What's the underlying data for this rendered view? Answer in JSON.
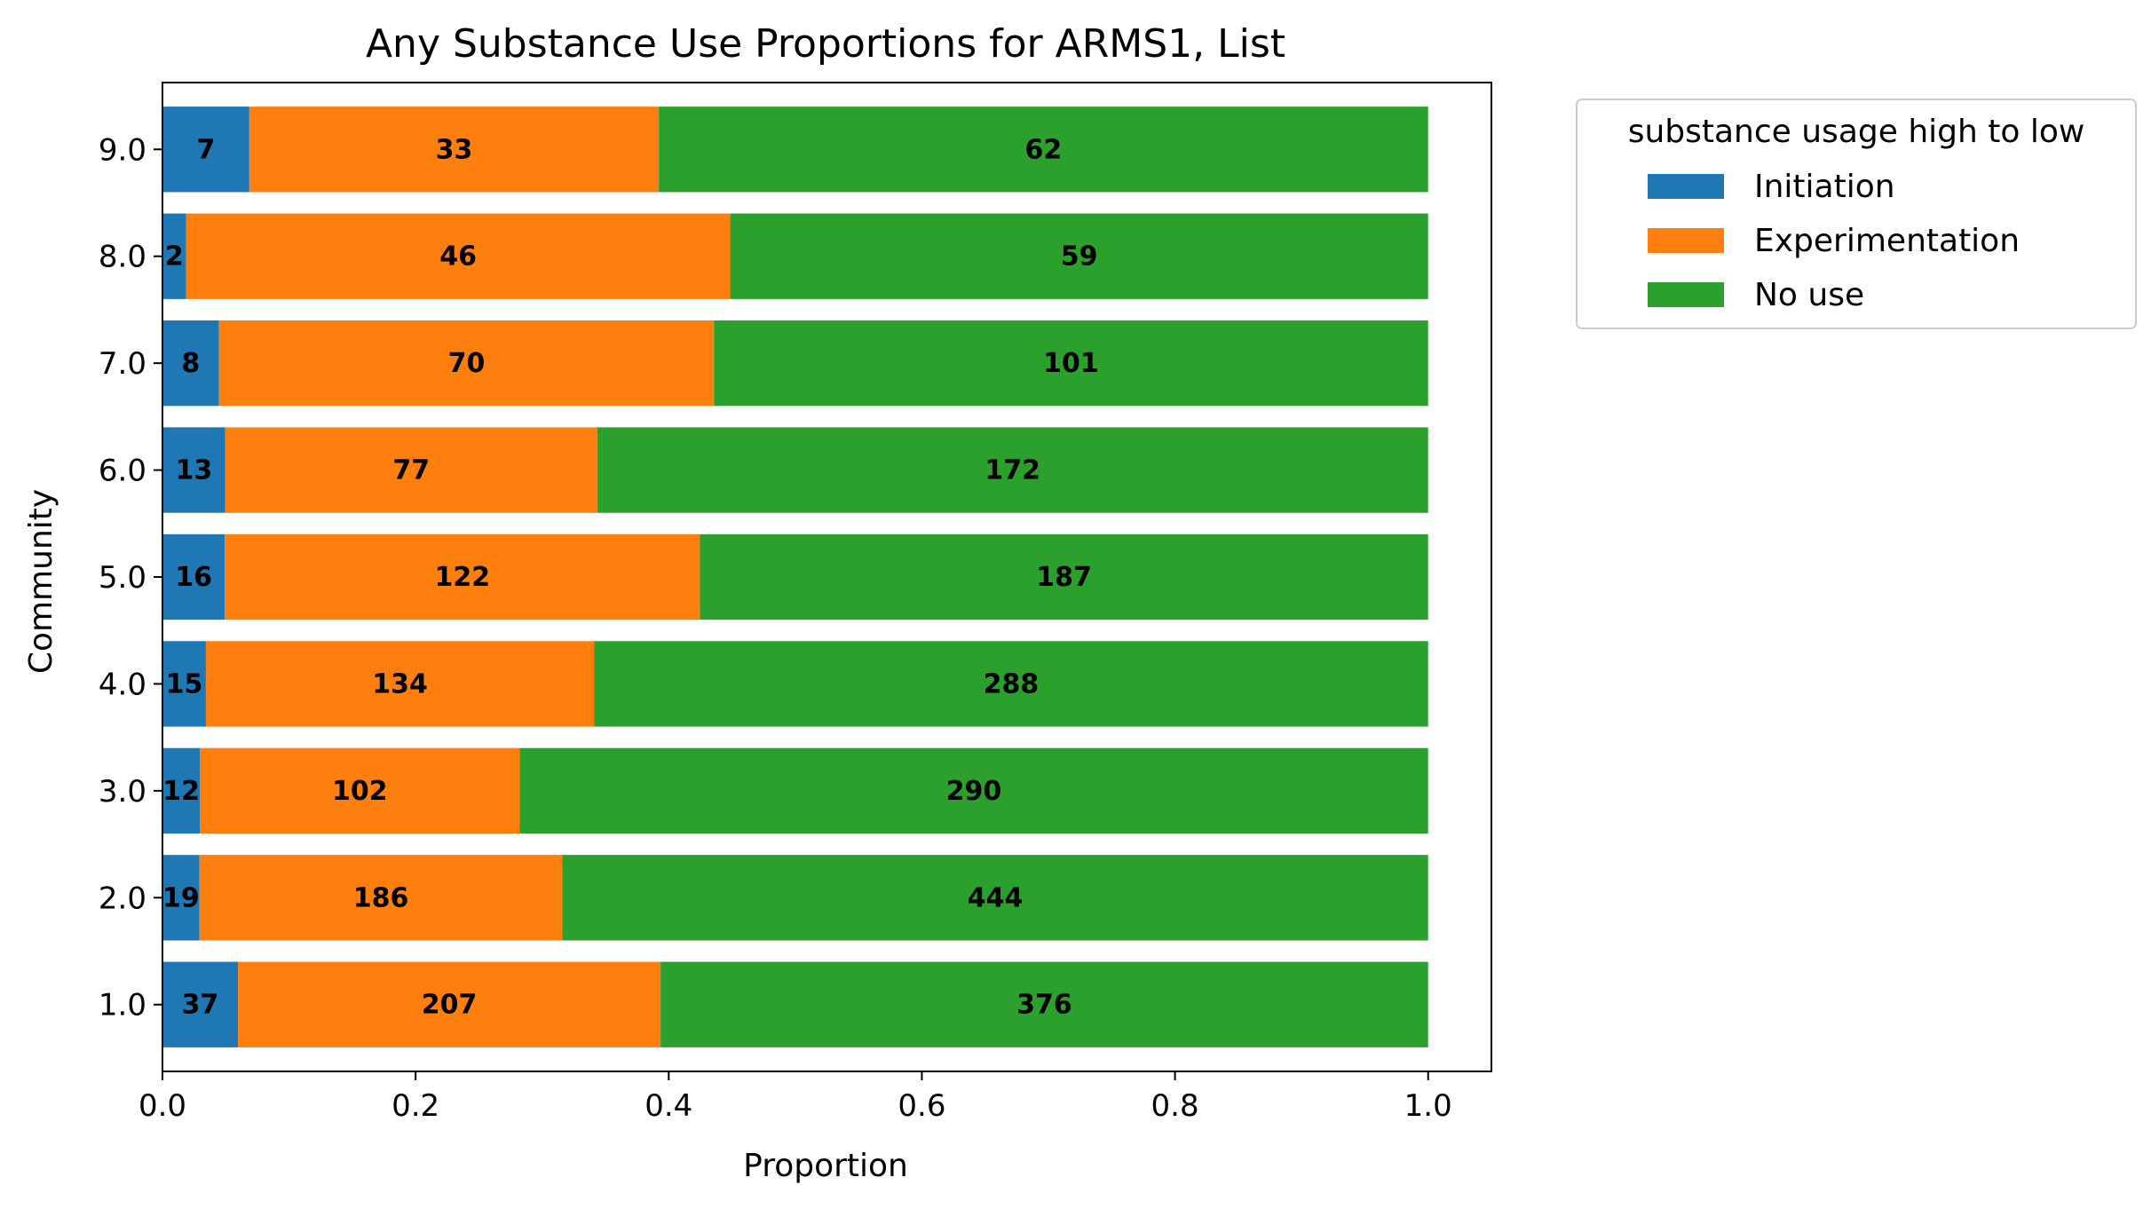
{
  "chart_data": {
    "type": "bar",
    "orientation": "horizontal",
    "stacked": true,
    "title": "Any Substance Use Proportions for ARMS1, List",
    "xlabel": "Proportion",
    "ylabel": "Community",
    "xlim": [
      0.0,
      1.05
    ],
    "xticks": [
      "0.0",
      "0.2",
      "0.4",
      "0.6",
      "0.8",
      "1.0"
    ],
    "categories": [
      "1.0",
      "2.0",
      "3.0",
      "4.0",
      "5.0",
      "6.0",
      "7.0",
      "8.0",
      "9.0"
    ],
    "legend": {
      "title": "substance usage high to low",
      "placement": "outside upper-right"
    },
    "series": [
      {
        "name": "Initiation",
        "color": "#1f77b4",
        "counts": [
          37,
          19,
          12,
          15,
          16,
          13,
          8,
          2,
          7
        ]
      },
      {
        "name": "Experimentation",
        "color": "#ff7f0e",
        "counts": [
          207,
          186,
          102,
          134,
          122,
          77,
          70,
          46,
          33
        ]
      },
      {
        "name": "No use",
        "color": "#2ca02c",
        "counts": [
          376,
          444,
          290,
          288,
          187,
          172,
          101,
          59,
          62
        ]
      }
    ],
    "grid": false
  }
}
